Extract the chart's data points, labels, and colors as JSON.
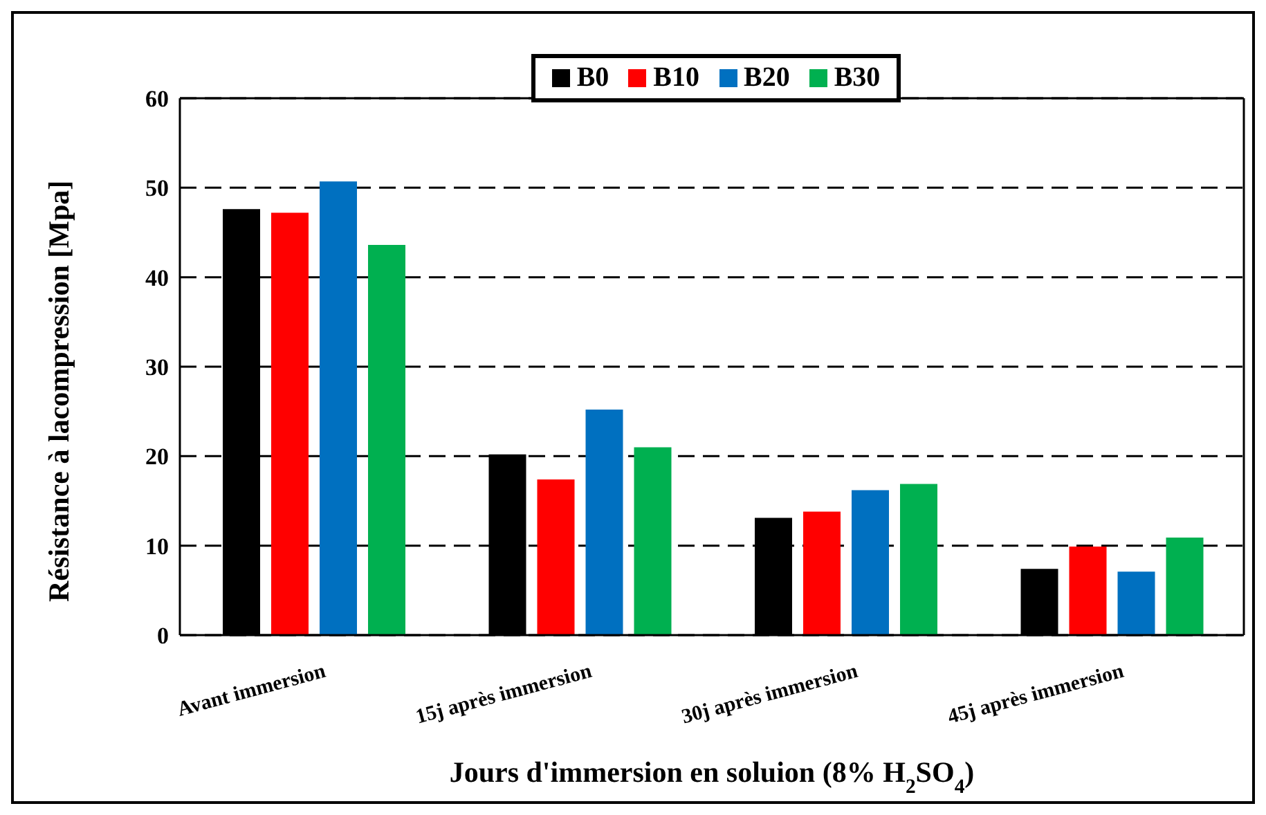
{
  "chart_data": {
    "type": "bar",
    "xlabel": "Jours d'immersion en soluion (8% H$_{2}$SO$_{4}$)",
    "ylabel": "Résistance à lacompression  [Mpa]",
    "categories": [
      "Avant immersion",
      "15j après immersion",
      "30j après immersion",
      "45j après immersion"
    ],
    "series": [
      {
        "name": "B0",
        "color": "#000000",
        "values": [
          47.6,
          20.2,
          13.1,
          7.4
        ]
      },
      {
        "name": "B10",
        "color": "#ff0000",
        "values": [
          47.2,
          17.4,
          13.8,
          9.9
        ]
      },
      {
        "name": "B20",
        "color": "#0070c0",
        "values": [
          50.7,
          25.2,
          16.2,
          7.1
        ]
      },
      {
        "name": "B30",
        "color": "#00b050",
        "values": [
          43.6,
          21.0,
          16.9,
          10.9
        ]
      }
    ],
    "ylim": [
      0,
      60
    ],
    "yticks": [
      0,
      10,
      20,
      30,
      40,
      50,
      60
    ],
    "grid": "y",
    "legend": "top"
  }
}
